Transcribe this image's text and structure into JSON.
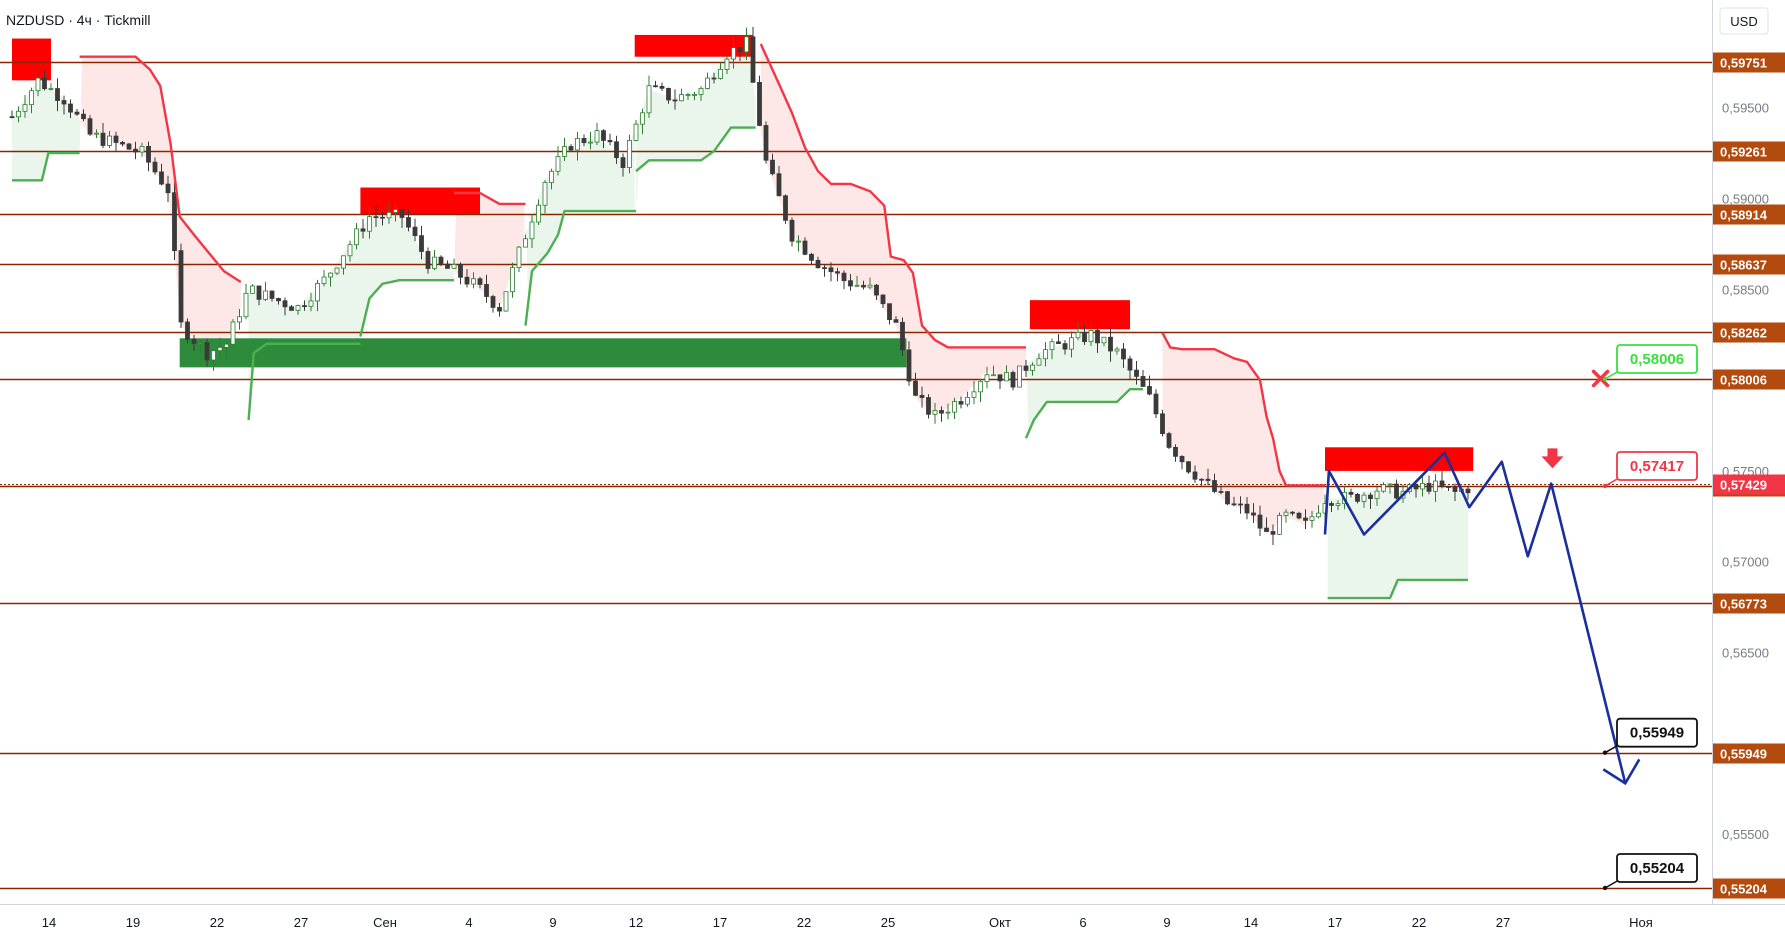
{
  "header": {
    "symbol_label": "NZDUSD · 4ч · Tickmill",
    "currency_label": "USD"
  },
  "colors": {
    "level_line": "#8b2500",
    "level_tag": "#b34a0e",
    "bull_candle": "#2e7d32",
    "bear_candle": "#3a3a3a",
    "trail_up": "#4caf50",
    "trail_down": "#f23645",
    "fill_up": "#e8f5e9",
    "fill_down": "#fde4e4",
    "supply_zone": "#ff0000",
    "demand_zone": "#2e8b3b",
    "forecast": "#1a2f9c",
    "callout_green": "#39e03c",
    "callout_red": "#f23645",
    "callout_black": "#111111"
  },
  "chart_data": {
    "type": "candlestick",
    "title": "",
    "ylim": [
      0.5505,
      0.6015
    ],
    "price_ticks": [
      "0,59500",
      "0,59000",
      "0,58500",
      "0,57500",
      "0,57000",
      "0,56500",
      "0,55500"
    ],
    "time_ticks": [
      "14",
      "19",
      "22",
      "27",
      "Сен",
      "4",
      "9",
      "12",
      "17",
      "22",
      "25",
      "Окт",
      "6",
      "9",
      "14",
      "17",
      "22",
      "27",
      "Ноя"
    ],
    "levels": [
      {
        "value": 0.59751,
        "label": "0,59751"
      },
      {
        "value": 0.59261,
        "label": "0,59261"
      },
      {
        "value": 0.58914,
        "label": "0,58914"
      },
      {
        "value": 0.58637,
        "label": "0,58637"
      },
      {
        "value": 0.58262,
        "label": "0,58262"
      },
      {
        "value": 0.58006,
        "label": "0,58006"
      },
      {
        "value": 0.57417,
        "label": "0,57417"
      },
      {
        "value": 0.56773,
        "label": "0,56773"
      },
      {
        "value": 0.55949,
        "label": "0,55949"
      },
      {
        "value": 0.55204,
        "label": "0,55204"
      }
    ],
    "current_price": {
      "value": 0.57429,
      "label": "0,57429"
    },
    "callouts": [
      {
        "value": 0.58006,
        "label": "0,58006",
        "style": "green"
      },
      {
        "value": 0.57417,
        "label": "0,57417",
        "style": "red"
      },
      {
        "value": 0.55949,
        "label": "0,55949",
        "style": "black"
      },
      {
        "value": 0.55204,
        "label": "0,55204",
        "style": "black"
      }
    ],
    "supply_zones": [
      {
        "t0": 0,
        "t1": 30,
        "top": 0.5988,
        "bottom": 0.5965
      },
      {
        "t0": 268,
        "t1": 360,
        "top": 0.5906,
        "bottom": 0.5891
      },
      {
        "t0": 479,
        "t1": 570,
        "top": 0.599,
        "bottom": 0.5978
      },
      {
        "t0": 783,
        "t1": 860,
        "top": 0.5844,
        "bottom": 0.5828
      },
      {
        "t0": 1010,
        "t1": 1124,
        "top": 0.5763,
        "bottom": 0.575
      }
    ],
    "demand_zones": [
      {
        "t0": 129,
        "t1": 688,
        "top": 0.5823,
        "bottom": 0.5807
      }
    ],
    "trail_segments": [
      {
        "dir": "up",
        "points": [
          [
            0,
            0.591
          ],
          [
            23,
            0.591
          ],
          [
            28,
            0.5925
          ],
          [
            52,
            0.5925
          ]
        ]
      },
      {
        "dir": "down",
        "points": [
          [
            52,
            0.5978
          ],
          [
            95,
            0.5978
          ],
          [
            106,
            0.5971
          ],
          [
            114,
            0.5962
          ],
          [
            122,
            0.593
          ],
          [
            129,
            0.589
          ],
          [
            140,
            0.588
          ],
          [
            148,
            0.5873
          ],
          [
            163,
            0.586
          ],
          [
            176,
            0.5854
          ]
        ]
      },
      {
        "dir": "up",
        "points": [
          [
            182,
            0.5778
          ],
          [
            186,
            0.5815
          ],
          [
            196,
            0.582
          ],
          [
            268,
            0.582
          ]
        ]
      },
      {
        "dir": "up",
        "points": [
          [
            268,
            0.5824
          ],
          [
            275,
            0.5845
          ],
          [
            285,
            0.5853
          ],
          [
            298,
            0.5855
          ],
          [
            332,
            0.5855
          ],
          [
            340,
            0.5855
          ]
        ]
      },
      {
        "dir": "down",
        "points": [
          [
            340,
            0.5903
          ],
          [
            360,
            0.5903
          ],
          [
            375,
            0.5897
          ],
          [
            395,
            0.5897
          ]
        ]
      },
      {
        "dir": "up",
        "points": [
          [
            395,
            0.583
          ],
          [
            400,
            0.586
          ],
          [
            412,
            0.587
          ],
          [
            420,
            0.588
          ],
          [
            425,
            0.5893
          ],
          [
            480,
            0.5893
          ]
        ]
      },
      {
        "dir": "up",
        "points": [
          [
            480,
            0.5915
          ],
          [
            490,
            0.5921
          ],
          [
            530,
            0.5921
          ],
          [
            540,
            0.5926
          ],
          [
            553,
            0.5939
          ],
          [
            572,
            0.5939
          ]
        ]
      },
      {
        "dir": "down",
        "points": [
          [
            576,
            0.5985
          ],
          [
            590,
            0.5963
          ],
          [
            600,
            0.5947
          ],
          [
            610,
            0.5928
          ],
          [
            620,
            0.5915
          ],
          [
            630,
            0.5908
          ],
          [
            645,
            0.5908
          ],
          [
            660,
            0.5904
          ],
          [
            671,
            0.5896
          ],
          [
            676,
            0.5868
          ],
          [
            686,
            0.5866
          ],
          [
            693,
            0.5859
          ],
          [
            700,
            0.583
          ],
          [
            710,
            0.5822
          ],
          [
            720,
            0.5818
          ],
          [
            780,
            0.5818
          ]
        ]
      },
      {
        "dir": "up",
        "points": [
          [
            780,
            0.5768
          ],
          [
            786,
            0.5778
          ],
          [
            796,
            0.5788
          ],
          [
            850,
            0.5788
          ],
          [
            860,
            0.5795
          ],
          [
            870,
            0.5795
          ]
        ]
      },
      {
        "dir": "down",
        "points": [
          [
            885,
            0.5826
          ],
          [
            891,
            0.5818
          ],
          [
            900,
            0.5817
          ],
          [
            925,
            0.5817
          ],
          [
            940,
            0.5812
          ],
          [
            950,
            0.581
          ],
          [
            960,
            0.58
          ],
          [
            965,
            0.578
          ],
          [
            970,
            0.5768
          ],
          [
            975,
            0.575
          ],
          [
            980,
            0.5742
          ],
          [
            1010,
            0.5742
          ]
        ]
      },
      {
        "dir": "up",
        "points": [
          [
            1012,
            0.568
          ],
          [
            1060,
            0.568
          ],
          [
            1066,
            0.569
          ],
          [
            1120,
            0.569
          ]
        ]
      }
    ],
    "forecast_path": [
      {
        "t": 1010,
        "y": 0.5715
      },
      {
        "t": 1013,
        "y": 0.575
      },
      {
        "t": 1040,
        "y": 0.5715
      },
      {
        "t": 1102,
        "y": 0.576
      },
      {
        "t": 1121,
        "y": 0.573
      },
      {
        "t": 1146,
        "y": 0.5755
      },
      {
        "t": 1166,
        "y": 0.5703
      },
      {
        "t": 1184,
        "y": 0.5743
      },
      {
        "t": 1241,
        "y": 0.5578
      }
    ],
    "stop_marker": {
      "t": 1222,
      "y": 0.5802
    },
    "arrow_marker": {
      "t": 1185,
      "y": 0.5758
    }
  }
}
